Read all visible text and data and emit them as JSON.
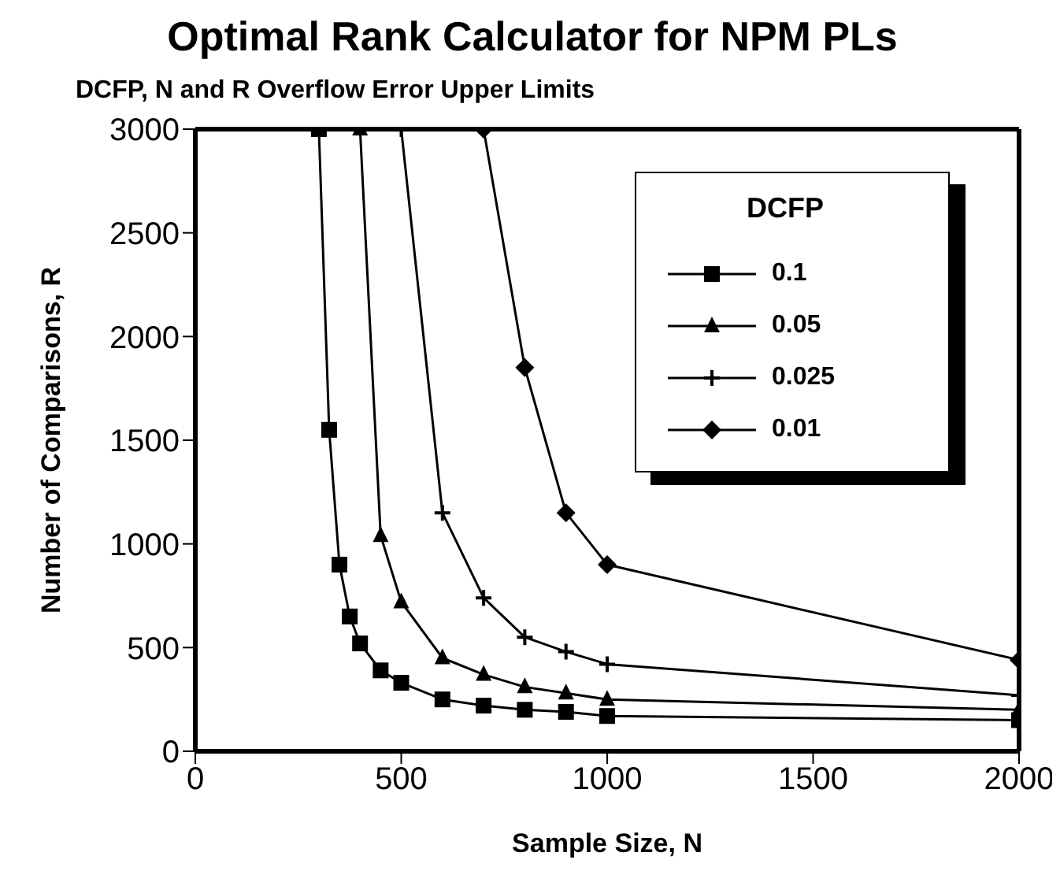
{
  "chart_data": {
    "type": "line",
    "title": "Optimal Rank Calculator for NPM PLs",
    "subtitle": "DCFP, N and R Overflow Error Upper Limits",
    "xlabel": "Sample Size, N",
    "ylabel": "Number of Comparisons, R",
    "legend_title": "DCFP",
    "legend": "top right",
    "grid": false,
    "xlim": [
      0,
      2000
    ],
    "xticks": [
      0,
      500,
      1000,
      1500,
      2000
    ],
    "ylim": [
      0,
      3000
    ],
    "yticks": [
      0,
      500,
      1000,
      1500,
      2000,
      2500,
      3000
    ],
    "series": [
      {
        "name": "0.1",
        "color": "#000000",
        "marker": "square",
        "x": [
          300,
          325,
          350,
          375,
          400,
          450,
          500,
          600,
          700,
          800,
          900,
          1000,
          2000
        ],
        "values": [
          3000,
          1550,
          900,
          650,
          520,
          390,
          330,
          250,
          220,
          200,
          190,
          170,
          150
        ]
      },
      {
        "name": "0.05",
        "color": "#000000",
        "marker": "triangle",
        "x": [
          400,
          450,
          500,
          600,
          700,
          800,
          900,
          1000,
          2000
        ],
        "values": [
          3000,
          1040,
          720,
          450,
          370,
          310,
          280,
          250,
          200
        ]
      },
      {
        "name": "0.025",
        "color": "#000000",
        "marker": "cross",
        "x": [
          500,
          600,
          700,
          800,
          900,
          1000,
          2000
        ],
        "values": [
          3000,
          1150,
          740,
          550,
          480,
          420,
          270
        ]
      },
      {
        "name": "0.01",
        "color": "#000000",
        "marker": "diamond",
        "x": [
          700,
          800,
          900,
          1000,
          2000
        ],
        "values": [
          3000,
          1850,
          1150,
          900,
          440
        ]
      }
    ]
  }
}
